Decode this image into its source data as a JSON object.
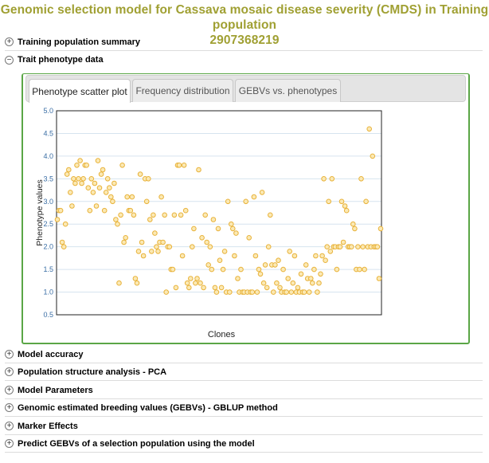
{
  "page": {
    "title_line1": "Genomic selection model for Cassava mosaic disease severity (CMDS) in Training population",
    "title_line2": "2907368219"
  },
  "sections_top": [
    {
      "label": "Training population summary",
      "expanded": false
    },
    {
      "label": "Trait phenotype data",
      "expanded": true
    }
  ],
  "sections_bottom": [
    {
      "label": "Model accuracy",
      "expanded": false
    },
    {
      "label": "Population structure analysis - PCA",
      "expanded": false
    },
    {
      "label": "Model Parameters",
      "expanded": false
    },
    {
      "label": "Genomic estimated breeding values (GEBVs) - GBLUP method",
      "expanded": false
    },
    {
      "label": "Marker Effects",
      "expanded": false
    },
    {
      "label": "Predict GEBVs of a selection population using the model",
      "expanded": false
    }
  ],
  "tabs": [
    {
      "label": "Phenotype scatter plot",
      "active": true
    },
    {
      "label": "Frequency distribution",
      "active": false
    },
    {
      "label": "GEBVs vs. phenotypes",
      "active": false
    }
  ],
  "colors": {
    "title": "#a0a033",
    "panel_border": "#5aa646",
    "point_stroke": "#e8b23a",
    "point_fill": "#fbe9b4",
    "tick_label": "#3a6ea5",
    "grid": "#d6e4ef"
  },
  "icons": {
    "collapsed": "plus-circle-icon",
    "expanded": "minus-circle-icon"
  },
  "chart_data": {
    "type": "scatter",
    "xlabel": "Clones",
    "ylabel": "Phenotype values",
    "ylim": [
      0.5,
      5.0
    ],
    "yticks": [
      "0.5",
      "1.0",
      "1.5",
      "2.0",
      "2.5",
      "3.0",
      "3.5",
      "4.0",
      "4.5",
      "5.0"
    ],
    "grid": true,
    "legend": "none",
    "x_count": 200,
    "values": [
      2.6,
      2.8,
      2.8,
      2.1,
      2.0,
      2.5,
      3.6,
      3.7,
      3.2,
      2.9,
      3.5,
      3.4,
      3.8,
      3.5,
      3.9,
      3.4,
      3.5,
      3.8,
      3.8,
      3.3,
      2.8,
      3.5,
      3.2,
      3.4,
      2.9,
      3.9,
      3.3,
      3.6,
      3.7,
      2.8,
      3.2,
      3.5,
      3.3,
      3.1,
      3.0,
      3.4,
      2.6,
      2.5,
      1.2,
      2.7,
      3.8,
      2.1,
      2.2,
      3.1,
      2.8,
      2.8,
      3.1,
      2.7,
      1.3,
      1.2,
      1.9,
      3.6,
      2.1,
      1.8,
      3.5,
      3.0,
      3.5,
      2.6,
      1.9,
      2.7,
      2.3,
      2.0,
      1.9,
      2.1,
      3.1,
      2.1,
      2.7,
      1.0,
      2.0,
      2.0,
      1.5,
      1.5,
      2.7,
      1.1,
      3.8,
      3.8,
      2.7,
      1.8,
      3.8,
      2.8,
      1.2,
      1.1,
      1.3,
      2.0,
      2.4,
      1.2,
      1.3,
      3.7,
      1.2,
      2.2,
      1.1,
      2.7,
      2.1,
      1.6,
      2.0,
      1.5,
      2.6,
      1.1,
      1.0,
      2.4,
      1.7,
      1.1,
      1.5,
      1.9,
      1.0,
      3.0,
      1.0,
      2.5,
      2.4,
      1.8,
      2.3,
      1.3,
      1.0,
      1.5,
      1.0,
      1.0,
      3.0,
      1.0,
      2.2,
      1.0,
      1.0,
      3.1,
      1.8,
      1.0,
      1.5,
      1.4,
      3.2,
      1.2,
      1.6,
      1.1,
      2.0,
      2.7,
      1.6,
      1.0,
      1.6,
      1.2,
      1.7,
      1.1,
      1.0,
      1.5,
      1.0,
      1.0,
      1.3,
      1.9,
      1.0,
      1.2,
      1.8,
      1.0,
      1.1,
      1.0,
      1.4,
      1.0,
      1.0,
      1.6,
      1.3,
      1.0,
      1.3,
      1.2,
      1.5,
      1.8,
      1.0,
      1.2,
      1.4,
      1.8,
      3.5,
      1.7,
      2.0,
      3.0,
      1.9,
      3.5,
      2.0,
      2.0,
      1.5,
      2.0,
      2.0,
      3.0,
      2.1,
      2.9,
      2.8,
      2.0,
      2.0,
      2.0,
      2.5,
      2.4,
      1.5,
      2.0,
      1.5,
      3.5,
      2.0,
      1.5,
      3.0,
      2.0,
      4.6,
      2.0,
      4.0,
      2.0,
      2.0,
      2.0,
      1.3,
      2.4
    ]
  }
}
